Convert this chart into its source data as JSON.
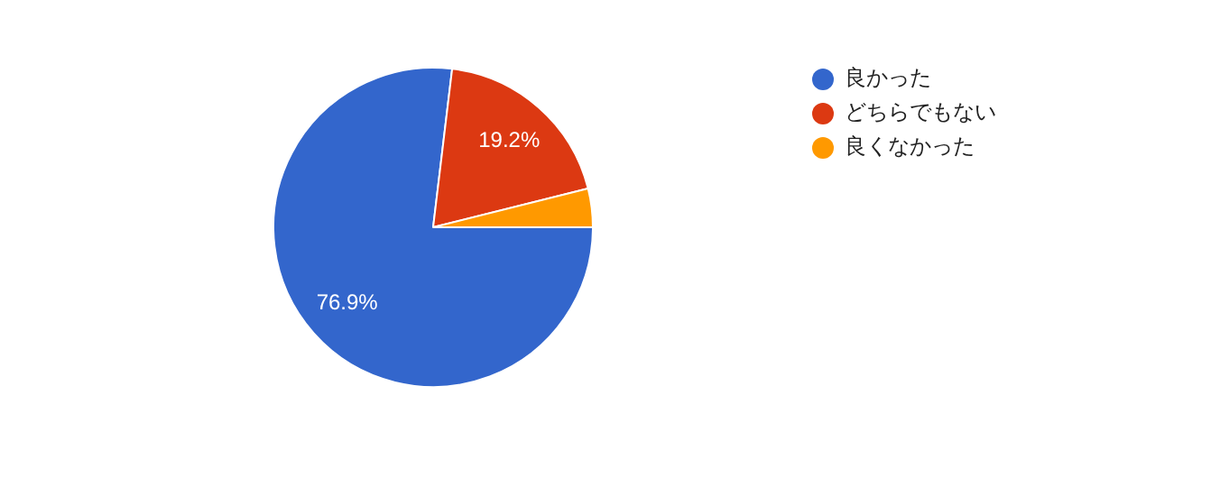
{
  "chart_data": {
    "type": "pie",
    "categories": [
      "良かった",
      "どちらでもない",
      "良くなかった"
    ],
    "values": [
      76.9,
      19.2,
      3.9
    ],
    "colors": [
      "#3366cc",
      "#dc3912",
      "#ff9900"
    ],
    "value_labels": [
      "76.9%",
      "19.2%",
      null
    ],
    "legend": "right"
  }
}
